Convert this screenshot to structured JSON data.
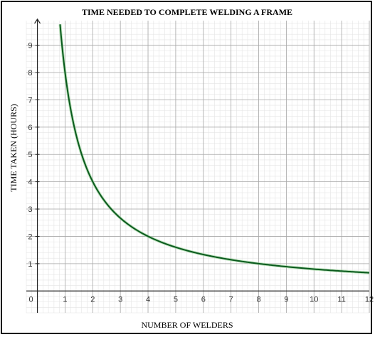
{
  "chart_data": {
    "type": "line",
    "title": "TIME NEEDED TO COMPLETE WELDING A FRAME",
    "xlabel": "NUMBER OF WELDERS",
    "ylabel": "TIME TAKEN (HOURS)",
    "xlim": [
      -0.4,
      12
    ],
    "ylim": [
      -0.8,
      9.9
    ],
    "x_ticks": [
      "0",
      "1",
      "2",
      "3",
      "4",
      "5",
      "6",
      "7",
      "8",
      "9",
      "10",
      "11",
      "12"
    ],
    "y_ticks": [
      "1",
      "2",
      "3",
      "4",
      "5",
      "6",
      "7",
      "8",
      "9"
    ],
    "grid": true,
    "minor_grid": true,
    "line_color": "#0b5a1e",
    "series": [
      {
        "x": [
          0.82,
          1,
          1.25,
          1.5,
          2,
          2.5,
          3,
          3.5,
          4,
          5,
          6,
          7,
          8,
          9,
          10,
          11,
          12
        ],
        "values": [
          9.8,
          8,
          6.4,
          5.33,
          4,
          3.2,
          2.67,
          2.29,
          2,
          1.6,
          1.33,
          1.14,
          1,
          0.89,
          0.8,
          0.73,
          0.67
        ]
      }
    ]
  }
}
